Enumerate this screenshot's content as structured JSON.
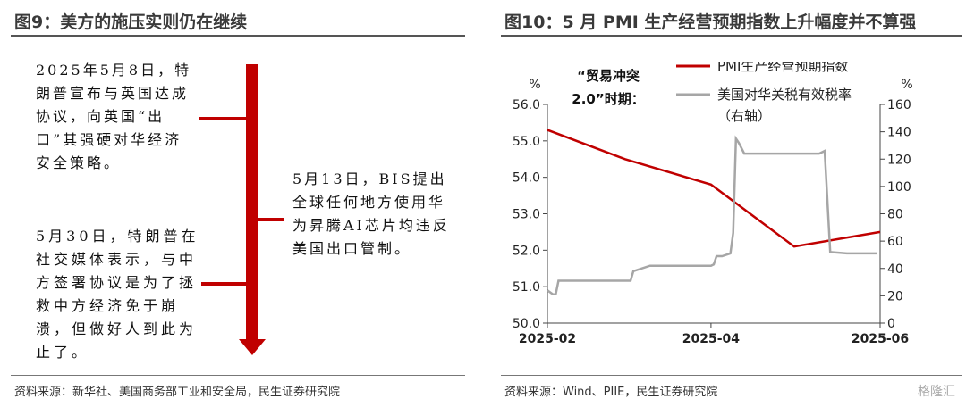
{
  "left_panel": {
    "title": "图9：美方的施压实则仍在继续",
    "events": [
      {
        "text": "2025年5月8日，特朗普宣布与英国达成协议，向英国“出口”其强硬对华经济安全策略。"
      },
      {
        "text": "5月13日，BIS提出全球任何地方使用华为昇腾AI芯片均违反美国出口管制。"
      },
      {
        "text": "5月30日，特朗普在社交媒体表示，与中方签署协议是为了拯救中方经济免于崩溃，但做好人到此为止了。"
      }
    ],
    "source": "资料来源：新华社、美国商务部工业和安全局，民生证券研究院"
  },
  "right_panel": {
    "title": "图10：5 月 PMI 生产经营预期指数上升幅度并不算强",
    "source": "资料来源：Wind、PIIE，民生证券研究院",
    "watermark": "格隆汇"
  },
  "chart_data": {
    "type": "line",
    "title": "图10：5 月 PMI 生产经营预期指数上升幅度并不算强",
    "annotation": "“贸易冲突2.0”时期：",
    "left_axis": {
      "unit": "%",
      "range": [
        50.0,
        56.0
      ],
      "ticks": [
        "56.0",
        "55.0",
        "54.0",
        "53.0",
        "52.0",
        "51.0",
        "50.0"
      ]
    },
    "right_axis": {
      "unit": "%",
      "range": [
        0,
        160
      ],
      "ticks": [
        "160",
        "140",
        "120",
        "100",
        "80",
        "60",
        "40",
        "20",
        "0"
      ]
    },
    "x_axis": {
      "ticks": [
        "2025-02",
        "2025-04",
        "2025-06"
      ],
      "range": [
        "2025-02",
        "2025-06"
      ]
    },
    "legend_position": "top-right",
    "series": [
      {
        "name": "PMI生产经营预期指数",
        "axis": "left",
        "color": "#c00000",
        "x": [
          "2025-02",
          "2025-03",
          "2025-04",
          "2025-05",
          "2025-06"
        ],
        "values": [
          55.3,
          54.5,
          53.8,
          52.1,
          52.5
        ]
      },
      {
        "name": "美国对华关税有效税率（右轴）",
        "axis": "right",
        "color": "#a6a6a6",
        "x": [
          "2025-02-01",
          "2025-02-03",
          "2025-02-04",
          "2025-02-05",
          "2025-03-03",
          "2025-03-04",
          "2025-03-10",
          "2025-04-01",
          "2025-04-02",
          "2025-04-03",
          "2025-04-05",
          "2025-04-08",
          "2025-04-09",
          "2025-04-10",
          "2025-04-11",
          "2025-04-13",
          "2025-04-20",
          "2025-05-10",
          "2025-05-11",
          "2025-05-12",
          "2025-05-14",
          "2025-05-20",
          "2025-05-31"
        ],
        "values": [
          24,
          21,
          21,
          31,
          31,
          38,
          42,
          42,
          43,
          49,
          49,
          51,
          66,
          135,
          132,
          124,
          124,
          124,
          125,
          126,
          52,
          51,
          51
        ]
      }
    ]
  }
}
